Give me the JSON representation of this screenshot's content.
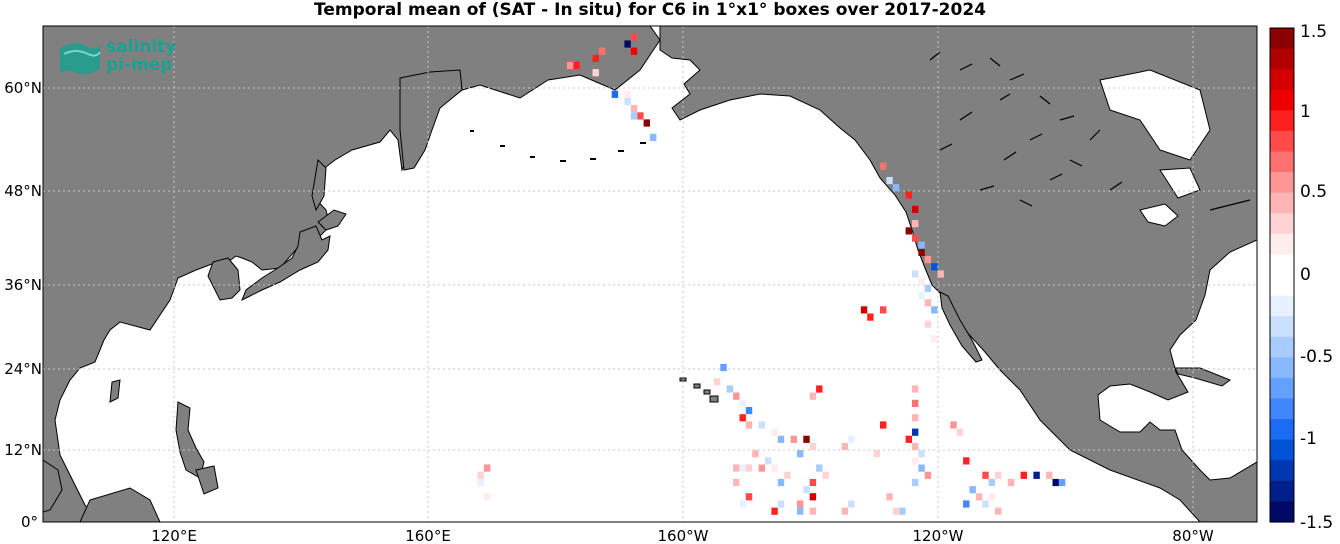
{
  "title": "Temporal mean of (SAT - In situ) for C6 in 1°x1° boxes over 2017-2024",
  "logo": {
    "line1": "salinity",
    "line2": "pi-mep"
  },
  "lat_ticks": [
    "0°",
    "12°N",
    "24°N",
    "36°N",
    "48°N",
    "60°N"
  ],
  "lon_ticks": [
    "120°E",
    "160°E",
    "160°W",
    "120°W",
    "80°W"
  ],
  "colorbar": {
    "ticks": [
      "1.5",
      "1",
      "0.5",
      "0",
      "-0.5",
      "-1",
      "-1.5"
    ],
    "range": [
      -1.5,
      1.5
    ],
    "colors": [
      "#8b0000",
      "#b00000",
      "#d40000",
      "#ee0000",
      "#ff2020",
      "#ff4a4a",
      "#ff7070",
      "#ff9595",
      "#ffb5b5",
      "#ffd3d3",
      "#ffecec",
      "#ffffff",
      "#ffffff",
      "#e7f1ff",
      "#cbe0ff",
      "#a9ccff",
      "#88b8ff",
      "#63a0ff",
      "#3f86ff",
      "#1b6bf5",
      "#0052d6",
      "#0036b0",
      "#001f8a",
      "#000a66"
    ]
  },
  "map": {
    "extent_lon": [
      100,
      290
    ],
    "extent_lat": [
      0,
      69
    ],
    "grid": true,
    "ocean_color": "#ffffff",
    "land_color": "#808080",
    "cells": [
      {
        "lon": 192,
        "lat": 67,
        "v": 0.8
      },
      {
        "lon": 192,
        "lat": 65,
        "v": 1.1
      },
      {
        "lon": 191,
        "lat": 66,
        "v": -1.5
      },
      {
        "lon": 187,
        "lat": 65,
        "v": 0.7
      },
      {
        "lon": 186,
        "lat": 64,
        "v": 1.0
      },
      {
        "lon": 186,
        "lat": 62,
        "v": 0.3
      },
      {
        "lon": 183,
        "lat": 63,
        "v": 0.9
      },
      {
        "lon": 182,
        "lat": 63,
        "v": 0.6
      },
      {
        "lon": 189,
        "lat": 59,
        "v": -0.9
      },
      {
        "lon": 191,
        "lat": 58,
        "v": -0.3
      },
      {
        "lon": 192,
        "lat": 57,
        "v": 0.5
      },
      {
        "lon": 193,
        "lat": 56,
        "v": 0.8
      },
      {
        "lon": 194,
        "lat": 55,
        "v": 1.4
      },
      {
        "lon": 192,
        "lat": 56,
        "v": -0.4
      },
      {
        "lon": 195,
        "lat": 53,
        "v": -0.6
      },
      {
        "lon": 191,
        "lat": 59,
        "v": 0.2
      },
      {
        "lon": 231,
        "lat": 49,
        "v": 0.7
      },
      {
        "lon": 232,
        "lat": 47,
        "v": -0.3
      },
      {
        "lon": 233,
        "lat": 46,
        "v": -0.6
      },
      {
        "lon": 235,
        "lat": 45,
        "v": 0.9
      },
      {
        "lon": 236,
        "lat": 43,
        "v": 1.2
      },
      {
        "lon": 236,
        "lat": 41,
        "v": 0.5
      },
      {
        "lon": 235,
        "lat": 40,
        "v": 1.5
      },
      {
        "lon": 236,
        "lat": 39,
        "v": 0.8
      },
      {
        "lon": 237,
        "lat": 38,
        "v": -0.5
      },
      {
        "lon": 237,
        "lat": 37,
        "v": 1.4
      },
      {
        "lon": 238,
        "lat": 36,
        "v": 0.6
      },
      {
        "lon": 239,
        "lat": 35,
        "v": -1.0
      },
      {
        "lon": 240,
        "lat": 34,
        "v": 0.4
      },
      {
        "lon": 236,
        "lat": 34,
        "v": -0.3
      },
      {
        "lon": 237,
        "lat": 33,
        "v": 0.2
      },
      {
        "lon": 238,
        "lat": 32,
        "v": -0.4
      },
      {
        "lon": 237,
        "lat": 31,
        "v": -0.2
      },
      {
        "lon": 238,
        "lat": 30,
        "v": 0.5
      },
      {
        "lon": 239,
        "lat": 29,
        "v": -0.6
      },
      {
        "lon": 238,
        "lat": 27,
        "v": 0.3
      },
      {
        "lon": 239,
        "lat": 25,
        "v": 0.2
      },
      {
        "lon": 228,
        "lat": 29,
        "v": 1.2
      },
      {
        "lon": 229,
        "lat": 28,
        "v": 1.0
      },
      {
        "lon": 231,
        "lat": 29,
        "v": 0.8
      },
      {
        "lon": 206,
        "lat": 21,
        "v": -0.7
      },
      {
        "lon": 205,
        "lat": 19,
        "v": 0.3
      },
      {
        "lon": 207,
        "lat": 18,
        "v": -0.4
      },
      {
        "lon": 208,
        "lat": 17,
        "v": 0.6
      },
      {
        "lon": 209,
        "lat": 16,
        "v": -0.2
      },
      {
        "lon": 210,
        "lat": 15,
        "v": -0.8
      },
      {
        "lon": 209,
        "lat": 14,
        "v": 1.0
      },
      {
        "lon": 210,
        "lat": 13,
        "v": 0.4
      },
      {
        "lon": 212,
        "lat": 13,
        "v": -0.3
      },
      {
        "lon": 214,
        "lat": 12,
        "v": 0.2
      },
      {
        "lon": 215,
        "lat": 11,
        "v": -0.5
      },
      {
        "lon": 217,
        "lat": 11,
        "v": 0.6
      },
      {
        "lon": 219,
        "lat": 11,
        "v": 1.4
      },
      {
        "lon": 220,
        "lat": 10,
        "v": 0.3
      },
      {
        "lon": 218,
        "lat": 9,
        "v": -0.6
      },
      {
        "lon": 221,
        "lat": 18,
        "v": 1.0
      },
      {
        "lon": 220,
        "lat": 17,
        "v": 0.5
      },
      {
        "lon": 236,
        "lat": 12,
        "v": -1.2
      },
      {
        "lon": 235,
        "lat": 11,
        "v": 0.9
      },
      {
        "lon": 236,
        "lat": 10,
        "v": 0.4
      },
      {
        "lon": 237,
        "lat": 9,
        "v": -0.3
      },
      {
        "lon": 236,
        "lat": 8,
        "v": 0.2
      },
      {
        "lon": 237,
        "lat": 7,
        "v": -0.5
      },
      {
        "lon": 236,
        "lat": 14,
        "v": 0.4
      },
      {
        "lon": 236,
        "lat": 16,
        "v": 0.7
      },
      {
        "lon": 236,
        "lat": 18,
        "v": 0.5
      },
      {
        "lon": 238,
        "lat": 6,
        "v": 0.6
      },
      {
        "lon": 236,
        "lat": 5,
        "v": -0.4
      },
      {
        "lon": 231,
        "lat": 13,
        "v": 1.0
      },
      {
        "lon": 230,
        "lat": 9,
        "v": 0.3
      },
      {
        "lon": 226,
        "lat": 11,
        "v": -0.2
      },
      {
        "lon": 225,
        "lat": 10,
        "v": 0.5
      },
      {
        "lon": 221,
        "lat": 7,
        "v": -0.4
      },
      {
        "lon": 222,
        "lat": 6,
        "v": 0.3
      },
      {
        "lon": 220,
        "lat": 5,
        "v": 0.8
      },
      {
        "lon": 219,
        "lat": 4,
        "v": -0.3
      },
      {
        "lon": 220,
        "lat": 3,
        "v": 1.2
      },
      {
        "lon": 218,
        "lat": 2,
        "v": 0.6
      },
      {
        "lon": 218,
        "lat": 1,
        "v": -0.6
      },
      {
        "lon": 220,
        "lat": 1,
        "v": 0.4
      },
      {
        "lon": 216,
        "lat": 6,
        "v": 0.3
      },
      {
        "lon": 215,
        "lat": 5,
        "v": -0.5
      },
      {
        "lon": 214,
        "lat": 7,
        "v": 0.2
      },
      {
        "lon": 213,
        "lat": 8,
        "v": -0.3
      },
      {
        "lon": 211,
        "lat": 9,
        "v": 0.5
      },
      {
        "lon": 212,
        "lat": 7,
        "v": 0.6
      },
      {
        "lon": 209,
        "lat": 7,
        "v": -0.2
      },
      {
        "lon": 210,
        "lat": 7,
        "v": 0.3
      },
      {
        "lon": 208,
        "lat": 7,
        "v": 0.4
      },
      {
        "lon": 208,
        "lat": 5,
        "v": 0.5
      },
      {
        "lon": 210,
        "lat": 3,
        "v": 0.8
      },
      {
        "lon": 209,
        "lat": 2,
        "v": -0.2
      },
      {
        "lon": 215,
        "lat": 2,
        "v": -0.3
      },
      {
        "lon": 214,
        "lat": 1,
        "v": 1.0
      },
      {
        "lon": 225,
        "lat": 1,
        "v": 0.4
      },
      {
        "lon": 226,
        "lat": 2,
        "v": -0.3
      },
      {
        "lon": 232,
        "lat": 3,
        "v": 0.5
      },
      {
        "lon": 234,
        "lat": 1,
        "v": -0.4
      },
      {
        "lon": 233,
        "lat": 1,
        "v": 0.3
      },
      {
        "lon": 242,
        "lat": 13,
        "v": 0.6
      },
      {
        "lon": 243,
        "lat": 12,
        "v": 0.3
      },
      {
        "lon": 244,
        "lat": 8,
        "v": 1.0
      },
      {
        "lon": 245,
        "lat": 4,
        "v": -0.6
      },
      {
        "lon": 246,
        "lat": 3,
        "v": 0.5
      },
      {
        "lon": 247,
        "lat": 6,
        "v": 0.8
      },
      {
        "lon": 248,
        "lat": 5,
        "v": -0.4
      },
      {
        "lon": 249,
        "lat": 6,
        "v": 0.3
      },
      {
        "lon": 248,
        "lat": 3,
        "v": 0.2
      },
      {
        "lon": 249,
        "lat": 1,
        "v": 0.5
      },
      {
        "lon": 251,
        "lat": 5,
        "v": 0.4
      },
      {
        "lon": 253,
        "lat": 6,
        "v": 1.0
      },
      {
        "lon": 255,
        "lat": 6,
        "v": -1.3
      },
      {
        "lon": 257,
        "lat": 6,
        "v": 0.5
      },
      {
        "lon": 258,
        "lat": 5,
        "v": -1.4
      },
      {
        "lon": 259,
        "lat": 5,
        "v": -0.7
      },
      {
        "lon": 247,
        "lat": 2,
        "v": -0.3
      },
      {
        "lon": 244,
        "lat": 2,
        "v": -0.8
      },
      {
        "lon": 169,
        "lat": 7,
        "v": 0.6
      },
      {
        "lon": 168,
        "lat": 6,
        "v": 0.3
      },
      {
        "lon": 168,
        "lat": 5,
        "v": -0.2
      },
      {
        "lon": 169,
        "lat": 3,
        "v": 0.2
      }
    ]
  }
}
